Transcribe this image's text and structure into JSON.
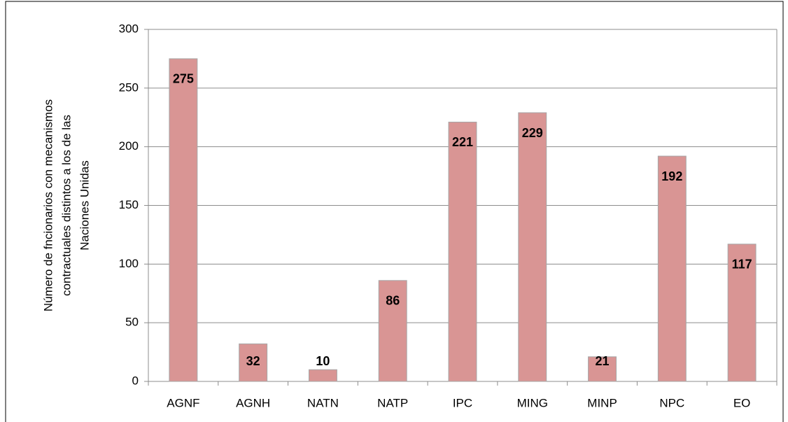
{
  "chart_data": {
    "type": "bar",
    "ylabel": [
      "Número de fncionarios con mecanismos",
      "contractuales distintos a los de las",
      "Naciones Unidas"
    ],
    "categories": [
      "AGNF",
      "AGNH",
      "NATN",
      "NATP",
      "IPC",
      "MING",
      "MINP",
      "NPC",
      "EO"
    ],
    "values": [
      275,
      32,
      10,
      86,
      221,
      229,
      21,
      192,
      117
    ],
    "color": "#d99594",
    "ylim": [
      0,
      300
    ],
    "yticks": [
      0,
      50,
      100,
      150,
      200,
      250,
      300
    ],
    "grid": true
  }
}
